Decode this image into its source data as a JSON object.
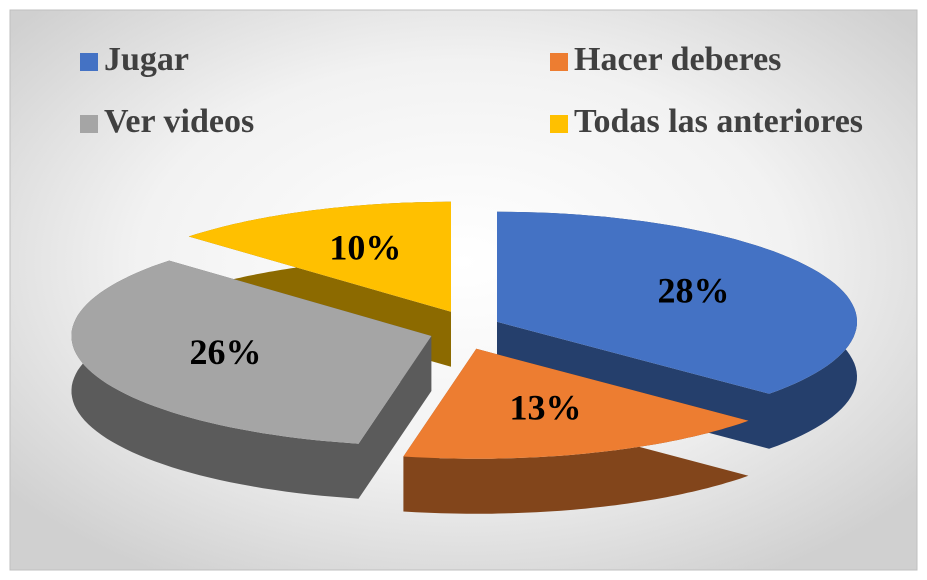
{
  "chart_data": {
    "type": "pie3d",
    "categories": [
      "Jugar",
      "Hacer deberes",
      "Ver videos",
      "Todas las anteriores"
    ],
    "values": [
      28,
      13,
      26,
      10
    ],
    "value_labels": [
      "28%",
      "13%",
      "26%",
      "10%"
    ],
    "colors": [
      "#4472c4",
      "#ed7d31",
      "#a5a5a5",
      "#ffc000"
    ],
    "legend": "top"
  }
}
